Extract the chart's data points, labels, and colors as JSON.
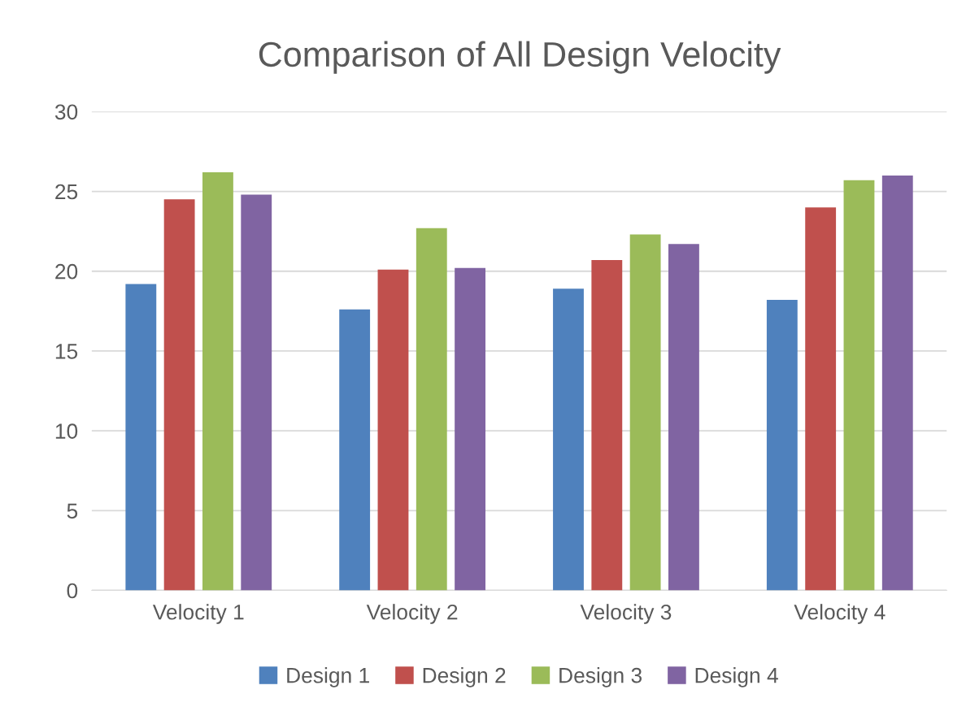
{
  "chart_data": {
    "type": "bar",
    "title": "Comparison of All Design Velocity",
    "categories": [
      "Velocity 1",
      "Velocity 2",
      "Velocity 3",
      "Velocity 4"
    ],
    "series": [
      {
        "name": "Design 1",
        "color": "#4f81bd",
        "values": [
          19.2,
          17.6,
          18.9,
          18.2
        ]
      },
      {
        "name": "Design 2",
        "color": "#c0504d",
        "values": [
          24.5,
          20.1,
          20.7,
          24.0
        ]
      },
      {
        "name": "Design 3",
        "color": "#9bbb59",
        "values": [
          26.2,
          22.7,
          22.3,
          25.7
        ]
      },
      {
        "name": "Design 4",
        "color": "#8064a2",
        "values": [
          24.8,
          20.2,
          21.7,
          26.0
        ]
      }
    ],
    "ylim": [
      0,
      30
    ],
    "yticks": [
      0,
      5,
      10,
      15,
      20,
      25,
      30
    ],
    "grid": "y",
    "legend": "bottom"
  }
}
